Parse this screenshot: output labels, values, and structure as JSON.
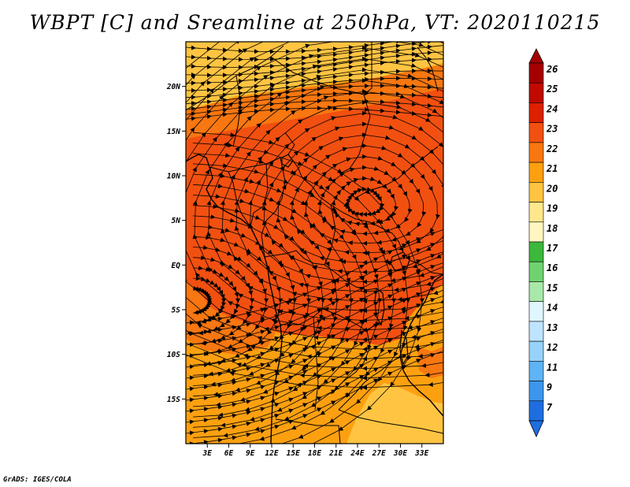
{
  "title": "WBPT [C] and Sreamline at 250hPa, VT: 2020110215",
  "credit": "GrADS: IGES/COLA",
  "map": {
    "lon_range": [
      0,
      36
    ],
    "lat_range": [
      -20,
      25
    ],
    "x_ticks": [
      {
        "lon": 3,
        "label": "3E"
      },
      {
        "lon": 6,
        "label": "6E"
      },
      {
        "lon": 9,
        "label": "9E"
      },
      {
        "lon": 12,
        "label": "12E"
      },
      {
        "lon": 15,
        "label": "15E"
      },
      {
        "lon": 18,
        "label": "18E"
      },
      {
        "lon": 21,
        "label": "21E"
      },
      {
        "lon": 24,
        "label": "24E"
      },
      {
        "lon": 27,
        "label": "27E"
      },
      {
        "lon": 30,
        "label": "30E"
      },
      {
        "lon": 33,
        "label": "33E"
      }
    ],
    "y_ticks": [
      {
        "lat": 20,
        "label": "20N"
      },
      {
        "lat": 15,
        "label": "15N"
      },
      {
        "lat": 10,
        "label": "10N"
      },
      {
        "lat": 5,
        "label": "5N"
      },
      {
        "lat": 0,
        "label": "EQ"
      },
      {
        "lat": -5,
        "label": "5S"
      },
      {
        "lat": -10,
        "label": "10S"
      },
      {
        "lat": -15,
        "label": "15S"
      }
    ],
    "field_colors": {
      "c20": "#ffc441",
      "c21": "#fda010",
      "c22": "#f87710",
      "c23": "#f25010"
    },
    "gyres": [
      {
        "name": "anticyclone-central-africa",
        "lon": 25,
        "lat": 7
      },
      {
        "name": "anticyclone-atlantic-west",
        "lon": 1,
        "lat": -4
      }
    ]
  },
  "colorbar": {
    "labels": [
      "26",
      "25",
      "24",
      "23",
      "22",
      "21",
      "20",
      "19",
      "18",
      "17",
      "16",
      "15",
      "14",
      "13",
      "12",
      "11",
      "9",
      "7"
    ],
    "colors": [
      "#a50000",
      "#c00a00",
      "#dc2000",
      "#f25010",
      "#f87710",
      "#fda010",
      "#ffc441",
      "#ffe88c",
      "#fff6c0",
      "#3cb83c",
      "#6fd36f",
      "#a8e8a8",
      "#e0f6ff",
      "#bfe4ff",
      "#96d2fa",
      "#5eb4f5",
      "#3c96ec",
      "#1e6ee0"
    ],
    "top_cap_color": "#a50000",
    "bottom_cap_color": "#1e6ee0"
  }
}
